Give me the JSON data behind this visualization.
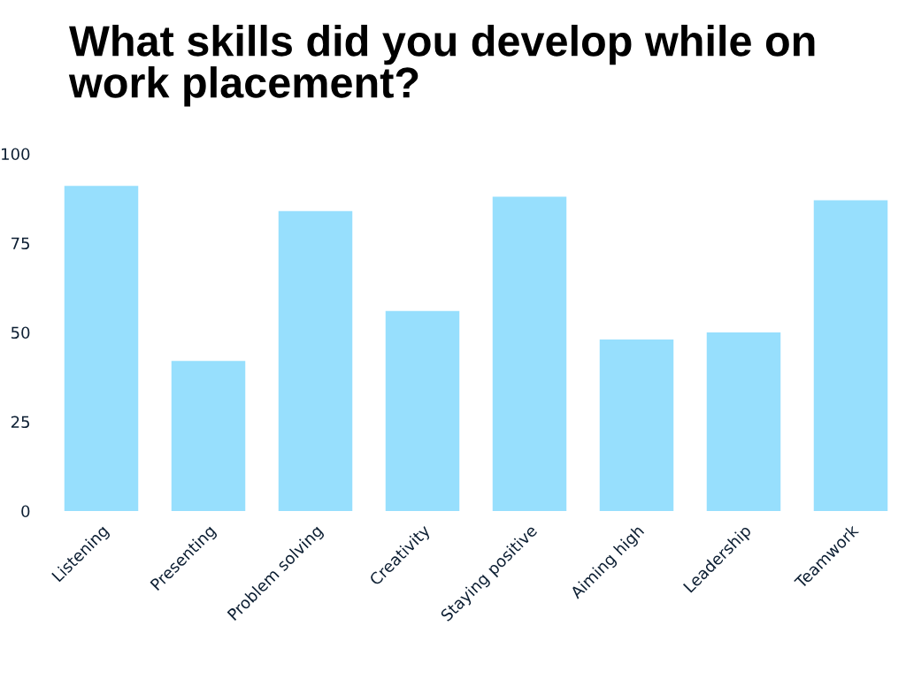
{
  "chart_data": {
    "type": "bar",
    "title": "What skills did you develop while on work placement?",
    "categories": [
      "Listening",
      "Presenting",
      "Problem solving",
      "Creativity",
      "Staying positive",
      "Aiming high",
      "Leadership",
      "Teamwork"
    ],
    "values": [
      91,
      42,
      84,
      56,
      88,
      48,
      50,
      87
    ],
    "color": "#97dffd",
    "ylim": [
      0,
      100
    ],
    "yticks": [
      0,
      25,
      50,
      75,
      100
    ],
    "grid": false,
    "legend": false
  }
}
